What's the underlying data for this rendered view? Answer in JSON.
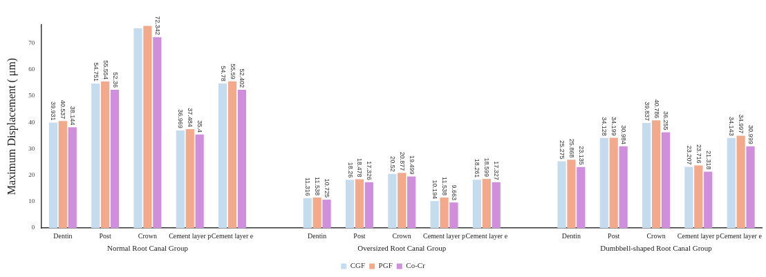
{
  "chart_data": {
    "type": "bar",
    "ylabel": "Maximum Displacement ( μm)",
    "categories": [
      "Dentin",
      "Post",
      "Crown",
      "Cement layer p",
      "Cement layer e",
      null,
      "Dentin",
      "Post",
      "Crown",
      "Cement layer p",
      "Cement layer e",
      null,
      "Dentin",
      "Post",
      "Crown",
      "Cement layer p",
      "Cement layer e"
    ],
    "annotations": [
      "Normal Root Canal Group",
      "Oversized Root Canal Group",
      "Dumbbell-shaped Root Canal Group"
    ],
    "series": [
      {
        "name": "CGF",
        "color": "#c5dcef",
        "values": [
          39.931,
          54.751,
          75.7,
          36.969,
          54.78,
          null,
          11.316,
          18.26,
          20.52,
          10.194,
          18.261,
          null,
          25.275,
          34.128,
          39.837,
          23.207,
          34.143
        ],
        "value_labels": [
          "39.931",
          "54.751",
          null,
          "36.969",
          "54.78",
          null,
          "11.316",
          "18.26",
          "20.52",
          "10.194",
          "18.261",
          null,
          "25.275",
          "34.128",
          "39.837",
          "23.207",
          "34.143"
        ]
      },
      {
        "name": "PGF",
        "color": "#f2a98c",
        "values": [
          40.537,
          55.554,
          76.6,
          37.484,
          55.59,
          null,
          11.538,
          18.478,
          20.877,
          11.538,
          18.599,
          null,
          25.868,
          34.199,
          40.786,
          23.716,
          34.997
        ],
        "value_labels": [
          "40.537",
          "55.554",
          null,
          "37.484",
          "55.59",
          null,
          "11.538",
          "18.478",
          "20.877",
          "11.538",
          "18.599",
          null,
          "25.868",
          "34.199",
          "40.786",
          "23.716",
          "34.997"
        ]
      },
      {
        "name": "Co-Cr",
        "color": "#cf8fdc",
        "values": [
          38.144,
          52.36,
          72.342,
          35.4,
          52.402,
          null,
          10.725,
          17.326,
          19.499,
          9.663,
          17.327,
          null,
          23.135,
          30.984,
          36.255,
          21.318,
          30.999
        ],
        "value_labels": [
          "38.144",
          "52.36",
          "72.342",
          "35.4",
          "52.402",
          null,
          "10.725",
          "17.326",
          "19.499",
          "9.663",
          "17.327",
          null,
          "23.135",
          "30.984",
          "36.255",
          "21.318",
          "30.999"
        ]
      }
    ],
    "ylim": [
      0,
      77
    ],
    "yticks": [
      0,
      10,
      20,
      30,
      40,
      50,
      60,
      70
    ],
    "grid": false,
    "legend": "bottom"
  }
}
